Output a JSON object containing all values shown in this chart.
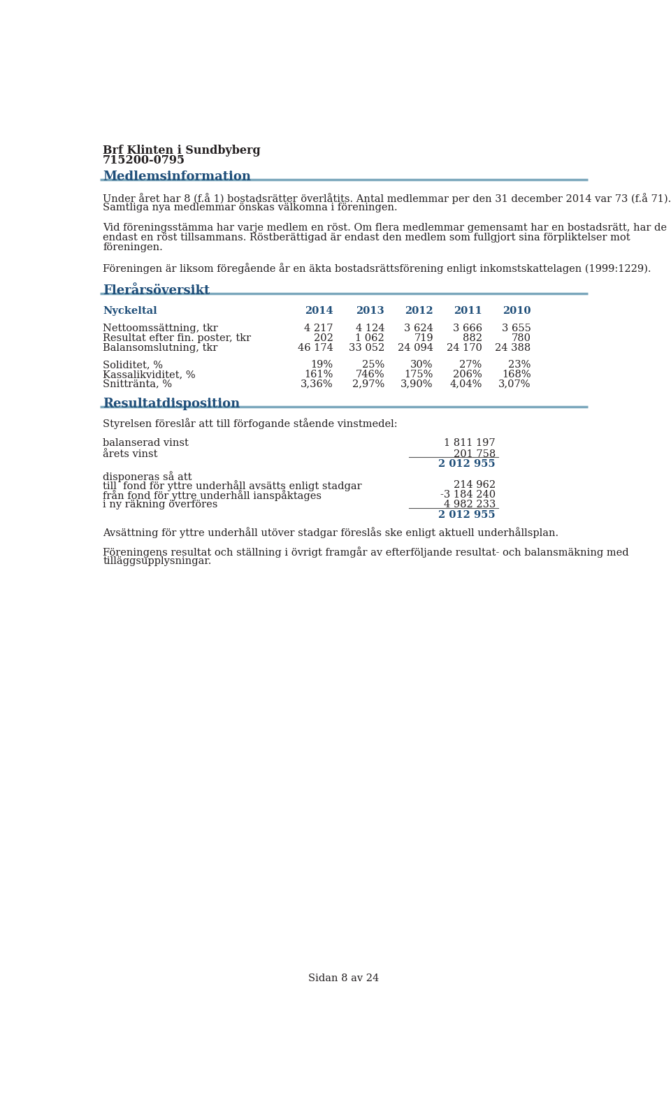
{
  "title_name": "Brf Klinten i Sundbyberg",
  "title_org": "715200-0795",
  "section1_heading": "Medlemsinformation",
  "section1_line1": "Under året har 8 (f.å 1) bostadsrätter överlåtits. Antal medlemmar per den 31 december 2014 var 73 (f.å 71).",
  "section1_line2": "Samtliga nya medlemmar önskas välkomna i föreningen.",
  "section1_para2_line1": "Vid föreningsstämma har varje medlem en röst. Om flera medlemmar gemensamt har en bostadsrätt, har de",
  "section1_para2_line2": "endast en röst tillsammans. Röstberättigad är endast den medlem som fullgjort sina förpliktelser mot",
  "section1_para2_line3": "föreningen.",
  "section1_para3": "Föreningen är liksom föregående år en äkta bostadsrättsförening enligt inkomstskattelagen (1999:1229).",
  "section2_heading": "Flerårsöversikt",
  "table_header": [
    "Nyckeltal",
    "2014",
    "2013",
    "2012",
    "2011",
    "2010"
  ],
  "table_row1": [
    "Nettoomssättning, tkr",
    "4 217",
    "4 124",
    "3 624",
    "3 666",
    "3 655"
  ],
  "table_row2": [
    "Resultat efter fin. poster, tkr",
    "202",
    "1 062",
    "719",
    "882",
    "780"
  ],
  "table_row3": [
    "Balansomslutning, tkr",
    "46 174",
    "33 052",
    "24 094",
    "24 170",
    "24 388"
  ],
  "table_row4": [
    "Soliditet, %",
    "19%",
    "25%",
    "30%",
    "27%",
    "23%"
  ],
  "table_row5": [
    "Kassalikviditet, %",
    "161%",
    "746%",
    "175%",
    "206%",
    "168%"
  ],
  "table_row6": [
    "Snittränta, %",
    "3,36%",
    "2,97%",
    "3,90%",
    "4,04%",
    "3,07%"
  ],
  "section3_heading": "Resultatdisposition",
  "section3_intro": "Styrelsen föreslår att till förfogande stående vinstmedel:",
  "disp_row1_label": "balanserad vinst",
  "disp_row1_value": "1 811 197",
  "disp_row2_label": "årets vinst",
  "disp_row2_value": "201 758",
  "disp_row3_value": "2 012 955",
  "disp_row4_label": "disponeras så att",
  "disp_row5_label": "till  fond för yttre underhåll avsätts enligt stadgar",
  "disp_row5_value": "214 962",
  "disp_row6_label": "från fond för yttre underhåll ianspåktages",
  "disp_row6_value": "-3 184 240",
  "disp_row7_label": "i ny räkning överföres",
  "disp_row7_value": "4 982 233",
  "disp_row8_value": "2 012 955",
  "section3_note1": "Avsättning för yttre underhåll utöver stadgar föreslås ske enligt aktuell underhållsplan.",
  "section3_note2_line1": "Föreningens resultat och ställning i övrigt framgår av efterföljande resultat- och balansmäkning med",
  "section3_note2_line2": "tilläggsupplysningar.",
  "footer": "Sidan 8 av 24",
  "heading_color": "#1F4E79",
  "text_color": "#231F20",
  "blue_color": "#1F4E79",
  "line_color": "#7BA7BC",
  "background_color": "#FFFFFF",
  "body_fontsize": 10.5,
  "heading_fontsize": 13,
  "title_fontsize": 11.5
}
